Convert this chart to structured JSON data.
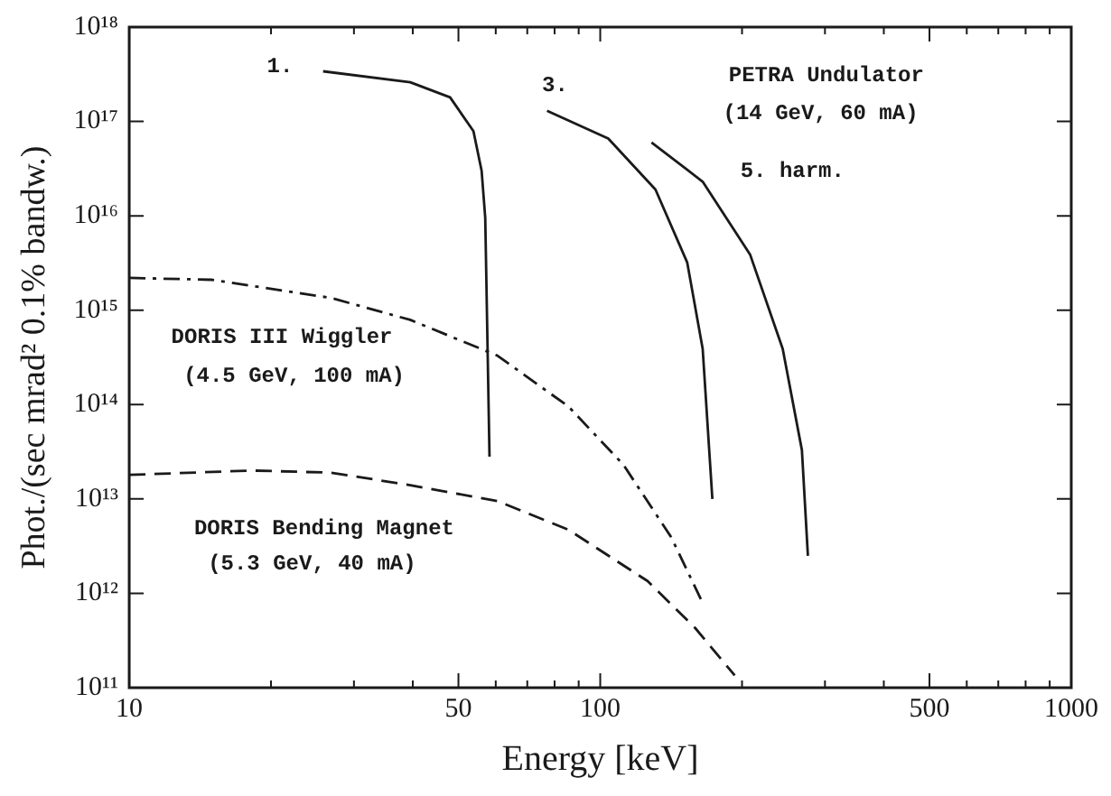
{
  "chart_data": {
    "type": "line",
    "xlabel": "Energy [keV]",
    "ylabel": "Phot./(sec mrad² 0.1% bandw.)",
    "log": "xy",
    "grid": false,
    "legend": false,
    "marker": "none",
    "xlim": [
      10,
      1000
    ],
    "ylim": [
      100000000000.0,
      1e+18
    ],
    "xticks": [
      10,
      {
        "value": 20,
        "label": null
      },
      {
        "value": 30,
        "label": null
      },
      {
        "value": 40,
        "label": null
      },
      50,
      {
        "value": 60,
        "label": null
      },
      {
        "value": 70,
        "label": null
      },
      {
        "value": 80,
        "label": null
      },
      {
        "value": 90,
        "label": null
      },
      100,
      {
        "value": 200,
        "label": null
      },
      {
        "value": 300,
        "label": null
      },
      {
        "value": 400,
        "label": null
      },
      500,
      {
        "value": 600,
        "label": null
      },
      {
        "value": 700,
        "label": null
      },
      {
        "value": 800,
        "label": null
      },
      {
        "value": 900,
        "label": null
      },
      1000
    ],
    "yticks": [
      {
        "value": 100000000000.0,
        "label": "10¹¹"
      },
      {
        "value": 1000000000000.0,
        "label": "10¹²"
      },
      {
        "value": 10000000000000.0,
        "label": "10¹³"
      },
      {
        "value": 100000000000000.0,
        "label": "10¹⁴"
      },
      {
        "value": 1000000000000000.0,
        "label": "10¹⁵"
      },
      {
        "value": 1e+16,
        "label": "10¹⁶"
      },
      {
        "value": 1e+17,
        "label": "10¹⁷"
      },
      {
        "value": 1e+18,
        "label": "10¹⁸"
      }
    ],
    "series": [
      {
        "color": "#1a1a1a",
        "line_style": "solid",
        "x": [
          25.8,
          39.5,
          48,
          53.8,
          56,
          57,
          58.2
        ],
        "values": [
          3.4e+17,
          2.6e+17,
          1.8e+17,
          7.9e+16,
          3e+16,
          9500000000000000.0,
          28000000000000.0
        ]
      },
      {
        "color": "#1a1a1a",
        "line_style": "solid",
        "x": [
          77.1,
          104,
          131,
          153,
          165,
          173
        ],
        "values": [
          1.3e+17,
          6.6e+16,
          1.9e+16,
          3200000000000000.0,
          390000000000000.0,
          10000000000000.0
        ]
      },
      {
        "color": "#1a1a1a",
        "line_style": "solid",
        "x": [
          128.5,
          165,
          208,
          244,
          268,
          276
        ],
        "values": [
          6e+16,
          2.3e+16,
          3900000000000000.0,
          390000000000000.0,
          33000000000000.0,
          2500000000000.0
        ]
      },
      {
        "color": "#1a1a1a",
        "line_style": "dashdot",
        "x": [
          10,
          15,
          26.8,
          39.5,
          60.5,
          85.7,
          112,
          141.6,
          165
        ],
        "values": [
          2200000000000000.0,
          2100000000000000.0,
          1350000000000000.0,
          790000000000000.0,
          330000000000000.0,
          95000000000000.0,
          23000000000000.0,
          3900000000000.0,
          790000000000.0
        ]
      },
      {
        "color": "#1a1a1a",
        "line_style": "dashed",
        "x": [
          10,
          18.2,
          26.8,
          39.5,
          60.5,
          85.7,
          126,
          159,
          193
        ],
        "values": [
          18000000000000.0,
          20000000000000.0,
          19000000000000.0,
          14000000000000.0,
          9500000000000.0,
          4700000000000.0,
          1350000000000.0,
          430000000000.0,
          135000000000.0
        ]
      }
    ],
    "annotations": [
      "1.",
      "3.",
      "5. harm.",
      "PETRA Undulator",
      "(14 GeV, 60 mA)",
      "DORIS III Wiggler",
      "(4.5 GeV, 100 mA)",
      "DORIS Bending Magnet",
      "(5.3 GeV, 40 mA)"
    ]
  }
}
